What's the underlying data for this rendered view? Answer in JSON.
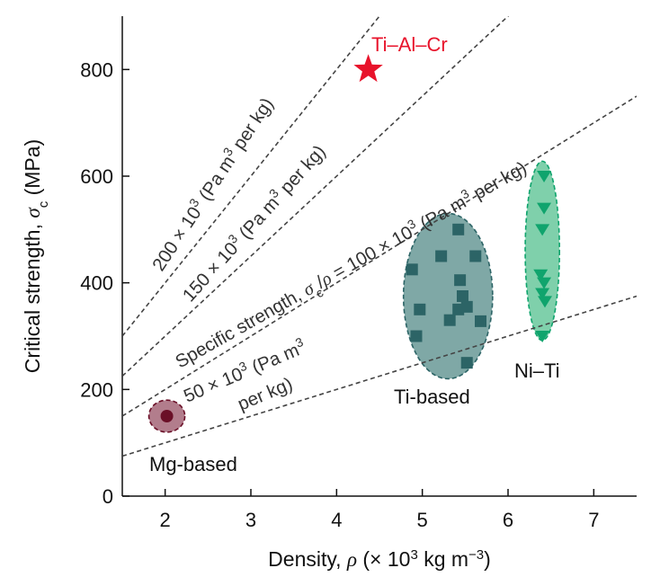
{
  "chart_data": {
    "type": "scatter",
    "title": "",
    "xlabel": {
      "text": "Density, ",
      "symbol": "ρ",
      "unit_open": " (× 10",
      "unit_exp": "3",
      "unit_mid": " kg m",
      "unit_exp2": "−3",
      "unit_close": ")"
    },
    "ylabel": {
      "text": "Critical strength, ",
      "symbol": "σ",
      "sub": "c",
      "unit": " (MPa)"
    },
    "xlim": [
      1.5,
      7.5
    ],
    "ylim": [
      0,
      900
    ],
    "xticks": [
      2,
      3,
      4,
      5,
      6,
      7
    ],
    "yticks": [
      0,
      200,
      400,
      600,
      800
    ],
    "grid": false,
    "specific_strength_lines": [
      {
        "slope": 50,
        "label_line1": "50 × 10",
        "label_sup1": "3",
        "label_line1_end": " (Pa m",
        "label_sup2": "3",
        "label_line2": "per kg)"
      },
      {
        "slope": 100,
        "label_a": "Specific strength, ",
        "label_sym": "σ",
        "label_sub": "c",
        "label_b": "/",
        "label_rho": "ρ",
        "label_c": " = 100 × 10",
        "label_sup1": "3",
        "label_d": " (Pa m",
        "label_sup2": "3",
        "label_e": " per kg)"
      },
      {
        "slope": 150,
        "label_a": "150 × 10",
        "label_sup1": "3",
        "label_b": " (Pa m",
        "label_sup2": "3",
        "label_c": " per kg)"
      },
      {
        "slope": 200,
        "label_a": "200 × 10",
        "label_sup1": "3",
        "label_b": " (Pa m",
        "label_sup2": "3",
        "label_c": " per kg)"
      }
    ],
    "series": [
      {
        "name": "Ti–Al–Cr",
        "marker": "star",
        "color": "#e8132b",
        "points": [
          [
            4.37,
            800
          ]
        ]
      },
      {
        "name": "Ti-based",
        "marker": "square",
        "color": "#2c6466",
        "fill": "#7fa8a6",
        "ellipse": {
          "cx": 5.3,
          "cy": 375,
          "rx": 0.52,
          "ry": 155
        },
        "points": [
          [
            4.88,
            425
          ],
          [
            4.97,
            350
          ],
          [
            4.93,
            300
          ],
          [
            5.22,
            450
          ],
          [
            5.32,
            330
          ],
          [
            5.42,
            500
          ],
          [
            5.44,
            405
          ],
          [
            5.47,
            375
          ],
          [
            5.42,
            350
          ],
          [
            5.52,
            355
          ],
          [
            5.52,
            250
          ],
          [
            5.62,
            450
          ],
          [
            5.68,
            328
          ]
        ]
      },
      {
        "name": "Ni–Ti",
        "marker": "triangle-down",
        "color": "#10a46d",
        "fill": "#7fd0ab",
        "ellipse": {
          "cx": 6.4,
          "cy": 460,
          "rx": 0.2,
          "ry": 168
        },
        "points": [
          [
            6.42,
            600
          ],
          [
            6.42,
            540
          ],
          [
            6.4,
            500
          ],
          [
            6.38,
            415
          ],
          [
            6.42,
            400
          ],
          [
            6.4,
            380
          ],
          [
            6.43,
            365
          ],
          [
            6.4,
            300
          ]
        ]
      },
      {
        "name": "Mg-based",
        "marker": "circle",
        "color": "#6a0f27",
        "fill": "#b27d8c",
        "ellipse": {
          "cx": 2.02,
          "cy": 150,
          "rx": 0.21,
          "ry": 30
        },
        "points": [
          [
            2.02,
            150
          ]
        ]
      }
    ]
  }
}
